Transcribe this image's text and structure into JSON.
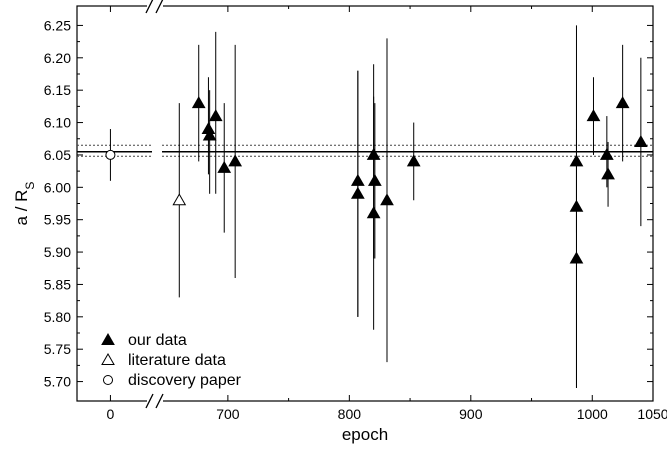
{
  "chart_data": {
    "type": "scatter",
    "title": "",
    "xlabel": "epoch",
    "ylabel_main": "a / R",
    "ylabel_sub": "S",
    "ylim": [
      5.67,
      6.28
    ],
    "y_ticks": [
      "5.70",
      "5.75",
      "5.80",
      "5.85",
      "5.90",
      "5.95",
      "6.00",
      "6.05",
      "6.10",
      "6.15",
      "6.20",
      "6.25"
    ],
    "x_axis_segments": [
      {
        "range": [
          -30,
          40
        ],
        "ticks": [
          "0"
        ],
        "tick_values": [
          0
        ]
      },
      {
        "range": [
          640,
          1050
        ],
        "ticks": [
          "700",
          "800",
          "900",
          "1000",
          "1050"
        ],
        "tick_values": [
          700,
          800,
          900,
          1000,
          1050
        ]
      }
    ],
    "x_axis_break": true,
    "grid": false,
    "reference_lines": {
      "mean": 6.055,
      "mean_upper": 6.065,
      "mean_lower": 6.048
    },
    "legend": {
      "placement": "bottom-left",
      "entries": [
        {
          "label": "our data",
          "marker": "filled-triangle"
        },
        {
          "label": "literature data",
          "marker": "open-triangle"
        },
        {
          "label": "discovery paper",
          "marker": "open-circle"
        }
      ]
    },
    "series": [
      {
        "name": "our data",
        "marker": "filled-triangle",
        "points": [
          {
            "x": 676,
            "y": 6.13,
            "err_low": 0.09,
            "err_high": 0.09
          },
          {
            "x": 684,
            "y": 6.09,
            "err_low": 0.07,
            "err_high": 0.08
          },
          {
            "x": 685,
            "y": 6.08,
            "err_low": 0.09,
            "err_high": 0.07
          },
          {
            "x": 690,
            "y": 6.11,
            "err_low": 0.12,
            "err_high": 0.13
          },
          {
            "x": 697,
            "y": 6.03,
            "err_low": 0.1,
            "err_high": 0.1
          },
          {
            "x": 706,
            "y": 6.04,
            "err_low": 0.18,
            "err_high": 0.18
          },
          {
            "x": 807,
            "y": 6.01,
            "err_low": 0.21,
            "err_high": 0.17
          },
          {
            "x": 807,
            "y": 5.99,
            "err_low": 0.19,
            "err_high": 0.19
          },
          {
            "x": 820,
            "y": 6.05,
            "err_low": 0.16,
            "err_high": 0.14
          },
          {
            "x": 820,
            "y": 5.96,
            "err_low": 0.18,
            "err_high": 0.18
          },
          {
            "x": 821,
            "y": 6.01,
            "err_low": 0.12,
            "err_high": 0.12
          },
          {
            "x": 831,
            "y": 5.98,
            "err_low": 0.25,
            "err_high": 0.25
          },
          {
            "x": 853,
            "y": 6.04,
            "err_low": 0.06,
            "err_high": 0.06
          },
          {
            "x": 987,
            "y": 6.04,
            "err_low": 0.11,
            "err_high": 0.11
          },
          {
            "x": 987,
            "y": 5.97,
            "err_low": 0.28,
            "err_high": 0.28
          },
          {
            "x": 987,
            "y": 5.89,
            "err_low": 0.2,
            "err_high": 0.2
          },
          {
            "x": 1001,
            "y": 6.11,
            "err_low": 0.06,
            "err_high": 0.06
          },
          {
            "x": 1012,
            "y": 6.05,
            "err_low": 0.05,
            "err_high": 0.06
          },
          {
            "x": 1013,
            "y": 6.02,
            "err_low": 0.05,
            "err_high": 0.05
          },
          {
            "x": 1025,
            "y": 6.13,
            "err_low": 0.09,
            "err_high": 0.09
          },
          {
            "x": 1040,
            "y": 6.07,
            "err_low": 0.13,
            "err_high": 0.13
          }
        ]
      },
      {
        "name": "literature data",
        "marker": "open-triangle",
        "points": [
          {
            "x": 660,
            "y": 5.98,
            "err_low": 0.15,
            "err_high": 0.15
          }
        ]
      },
      {
        "name": "discovery paper",
        "marker": "open-circle",
        "points": [
          {
            "x": 0,
            "y": 6.05,
            "err_low": 0.04,
            "err_high": 0.04
          }
        ]
      }
    ]
  }
}
